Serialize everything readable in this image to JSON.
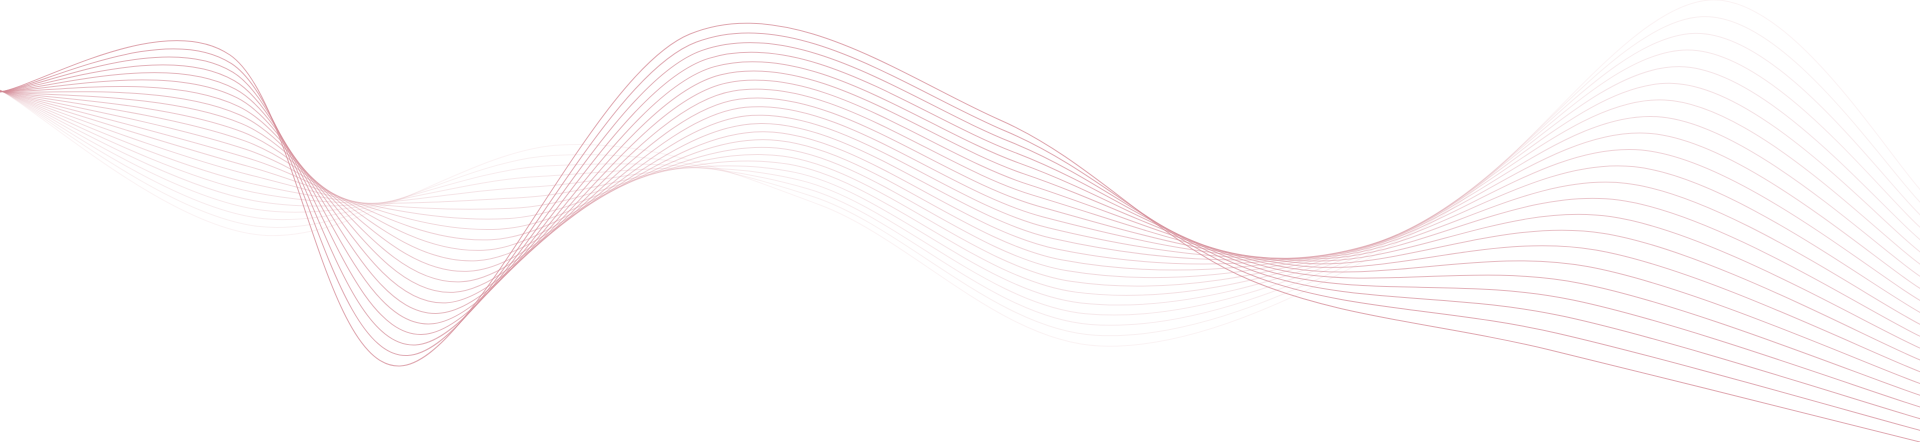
{
  "decoration": {
    "type": "wave-lines",
    "line_color": "#d48a96",
    "background_color": "#ffffff",
    "line_count": 22
  }
}
